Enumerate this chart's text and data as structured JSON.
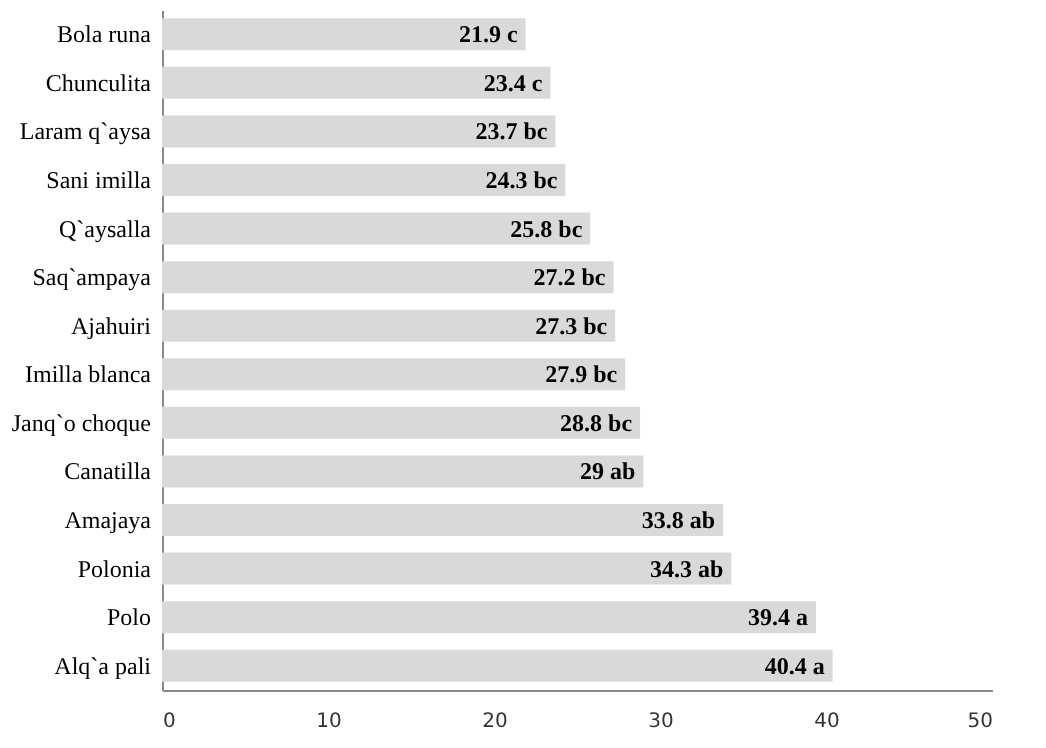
{
  "chart_data": {
    "type": "bar",
    "orientation": "horizontal",
    "categories": [
      "Bola runa",
      "Chunculita",
      "Laram q`aysa",
      "Sani imilla",
      "Q`aysalla",
      "Saq`ampaya",
      "Ajahuiri",
      "Imilla blanca",
      "Janq`o choque",
      "Canatilla",
      "Amajaya",
      "Polonia",
      "Polo",
      "Alq`a pali"
    ],
    "values": [
      21.9,
      23.4,
      23.7,
      24.3,
      25.8,
      27.2,
      27.3,
      27.9,
      28.8,
      29,
      33.8,
      34.3,
      39.4,
      40.4
    ],
    "value_labels": [
      "21.9 c",
      "23.4 c",
      "23.7 bc",
      "24.3 bc",
      "25.8 bc",
      "27.2 bc",
      "27.3 bc",
      "27.9 bc",
      "28.8 bc",
      "29 ab",
      "33.8 ab",
      "34.3 ab",
      "39.4 a",
      "40.4 a"
    ],
    "color": "#d9d9d9",
    "xlim": [
      0,
      50
    ],
    "xticks": [
      0,
      10,
      20,
      30,
      40,
      50
    ],
    "grid": false
  }
}
